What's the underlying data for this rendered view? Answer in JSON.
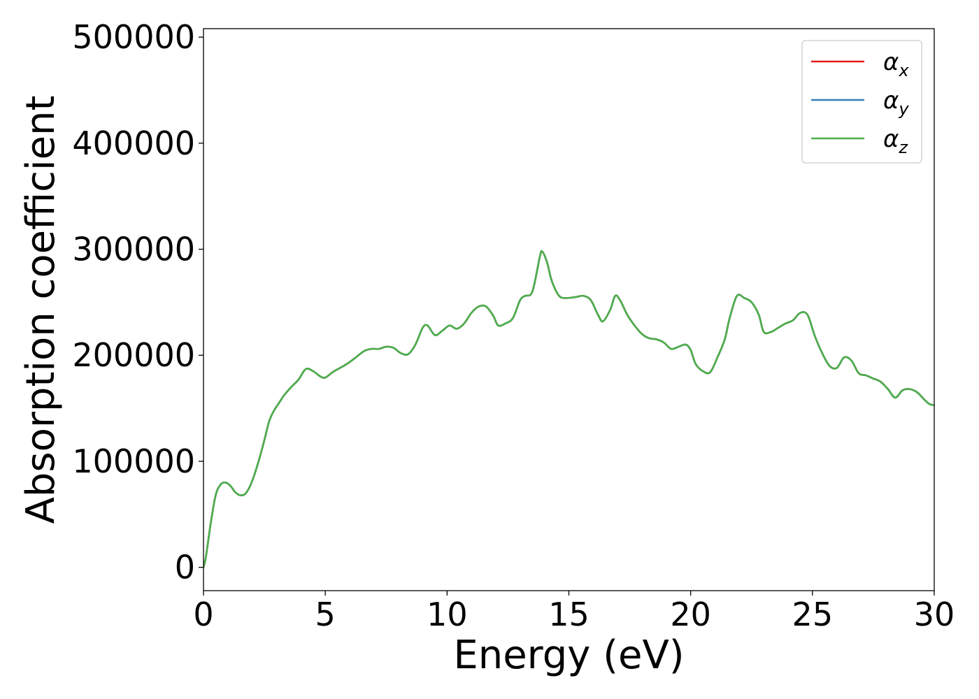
{
  "chart_data": {
    "type": "line",
    "title": "",
    "xlabel": "Energy (eV)",
    "ylabel": "Absorption coefficient",
    "xlim": [
      0,
      30
    ],
    "ylim": [
      -22000,
      508000
    ],
    "xticks": [
      0,
      5,
      10,
      15,
      20,
      25,
      30
    ],
    "yticks": [
      0,
      100000,
      200000,
      300000,
      400000,
      500000
    ],
    "xtick_labels": [
      "0",
      "5",
      "10",
      "15",
      "20",
      "25",
      "30"
    ],
    "ytick_labels": [
      "0",
      "100000",
      "200000",
      "300000",
      "400000",
      "500000"
    ],
    "grid": false,
    "legend_position": "upper right",
    "legend": [
      {
        "symbol": "α",
        "subscript": "x",
        "color": "#e41a1c"
      },
      {
        "symbol": "α",
        "subscript": "y",
        "color": "#377eb8"
      },
      {
        "symbol": "α",
        "subscript": "z",
        "color": "#4daf4a"
      }
    ],
    "x": [
      0,
      0.1,
      0.3,
      0.5,
      0.7,
      0.9,
      1.1,
      1.3,
      1.5,
      1.7,
      1.9,
      2.1,
      2.3,
      2.5,
      2.7,
      2.9,
      3.1,
      3.3,
      3.6,
      3.9,
      4.2,
      4.5,
      4.8,
      5.0,
      5.3,
      5.6,
      5.9,
      6.2,
      6.6,
      6.9,
      7.2,
      7.5,
      7.8,
      8.1,
      8.4,
      8.7,
      9.0,
      9.2,
      9.5,
      9.8,
      10.1,
      10.4,
      10.7,
      11.0,
      11.3,
      11.6,
      11.9,
      12.1,
      12.4,
      12.7,
      13.0,
      13.2,
      13.5,
      13.8,
      13.9,
      14.1,
      14.3,
      14.6,
      14.9,
      15.3,
      15.6,
      15.9,
      16.2,
      16.4,
      16.7,
      16.9,
      17.1,
      17.4,
      17.7,
      18.0,
      18.3,
      18.6,
      18.9,
      19.2,
      19.5,
      19.8,
      20.0,
      20.2,
      20.5,
      20.8,
      21.1,
      21.4,
      21.6,
      21.9,
      22.2,
      22.5,
      22.8,
      23.0,
      23.3,
      23.6,
      23.9,
      24.2,
      24.5,
      24.8,
      25.1,
      25.4,
      25.7,
      26.0,
      26.3,
      26.6,
      26.9,
      27.2,
      27.5,
      27.8,
      28.1,
      28.4,
      28.7,
      29.0,
      29.3,
      29.6,
      29.8,
      30.0
    ],
    "series": [
      {
        "name": "α_x",
        "color": "#e41a1c",
        "values": [
          0,
          10000,
          42000,
          68000,
          78000,
          80000,
          77000,
          71000,
          68000,
          69000,
          76000,
          88000,
          103000,
          120000,
          138000,
          148000,
          155000,
          162000,
          170000,
          177000,
          187000,
          185000,
          180000,
          179000,
          184000,
          188000,
          192000,
          197000,
          204000,
          206000,
          206000,
          208000,
          207000,
          202000,
          201000,
          210000,
          226000,
          228000,
          219000,
          223000,
          228000,
          225000,
          230000,
          240000,
          246000,
          246000,
          237000,
          228000,
          230000,
          235000,
          252000,
          256000,
          260000,
          292000,
          298000,
          288000,
          270000,
          256000,
          254000,
          255000,
          256000,
          252000,
          238000,
          232000,
          243000,
          256000,
          252000,
          238000,
          228000,
          220000,
          216000,
          215000,
          212000,
          206000,
          208000,
          210000,
          205000,
          192000,
          185000,
          184000,
          198000,
          215000,
          235000,
          256000,
          254000,
          250000,
          238000,
          222000,
          222000,
          226000,
          230000,
          233000,
          240000,
          238000,
          218000,
          202000,
          190000,
          188000,
          198000,
          195000,
          183000,
          181000,
          178000,
          175000,
          168000,
          160000,
          167000,
          168000,
          165000,
          158000,
          154000,
          153000
        ]
      },
      {
        "name": "α_y",
        "color": "#377eb8",
        "values": [
          0,
          10000,
          42000,
          68000,
          78000,
          80000,
          77000,
          71000,
          68000,
          69000,
          76000,
          88000,
          103000,
          120000,
          138000,
          148000,
          155000,
          162000,
          170000,
          177000,
          187000,
          185000,
          180000,
          179000,
          184000,
          188000,
          192000,
          197000,
          204000,
          206000,
          206000,
          208000,
          207000,
          202000,
          201000,
          210000,
          226000,
          228000,
          219000,
          223000,
          228000,
          225000,
          230000,
          240000,
          246000,
          246000,
          237000,
          228000,
          230000,
          235000,
          252000,
          256000,
          260000,
          292000,
          298000,
          288000,
          270000,
          256000,
          254000,
          255000,
          256000,
          252000,
          238000,
          232000,
          243000,
          256000,
          252000,
          238000,
          228000,
          220000,
          216000,
          215000,
          212000,
          206000,
          208000,
          210000,
          205000,
          192000,
          185000,
          184000,
          198000,
          215000,
          235000,
          256000,
          254000,
          250000,
          238000,
          222000,
          222000,
          226000,
          230000,
          233000,
          240000,
          238000,
          218000,
          202000,
          190000,
          188000,
          198000,
          195000,
          183000,
          181000,
          178000,
          175000,
          168000,
          160000,
          167000,
          168000,
          165000,
          158000,
          154000,
          153000
        ]
      },
      {
        "name": "α_z",
        "color": "#4daf4a",
        "values": [
          0,
          10000,
          42000,
          68000,
          78000,
          80000,
          77000,
          71000,
          68000,
          69000,
          76000,
          88000,
          103000,
          120000,
          138000,
          148000,
          155000,
          162000,
          170000,
          177000,
          187000,
          185000,
          180000,
          179000,
          184000,
          188000,
          192000,
          197000,
          204000,
          206000,
          206000,
          208000,
          207000,
          202000,
          201000,
          210000,
          226000,
          228000,
          219000,
          223000,
          228000,
          225000,
          230000,
          240000,
          246000,
          246000,
          237000,
          228000,
          230000,
          235000,
          252000,
          256000,
          260000,
          292000,
          298000,
          288000,
          270000,
          256000,
          254000,
          255000,
          256000,
          252000,
          238000,
          232000,
          243000,
          256000,
          252000,
          238000,
          228000,
          220000,
          216000,
          215000,
          212000,
          206000,
          208000,
          210000,
          205000,
          192000,
          185000,
          184000,
          198000,
          215000,
          235000,
          256000,
          254000,
          250000,
          238000,
          222000,
          222000,
          226000,
          230000,
          233000,
          240000,
          238000,
          218000,
          202000,
          190000,
          188000,
          198000,
          195000,
          183000,
          181000,
          178000,
          175000,
          168000,
          160000,
          167000,
          168000,
          165000,
          158000,
          154000,
          153000
        ]
      }
    ]
  }
}
